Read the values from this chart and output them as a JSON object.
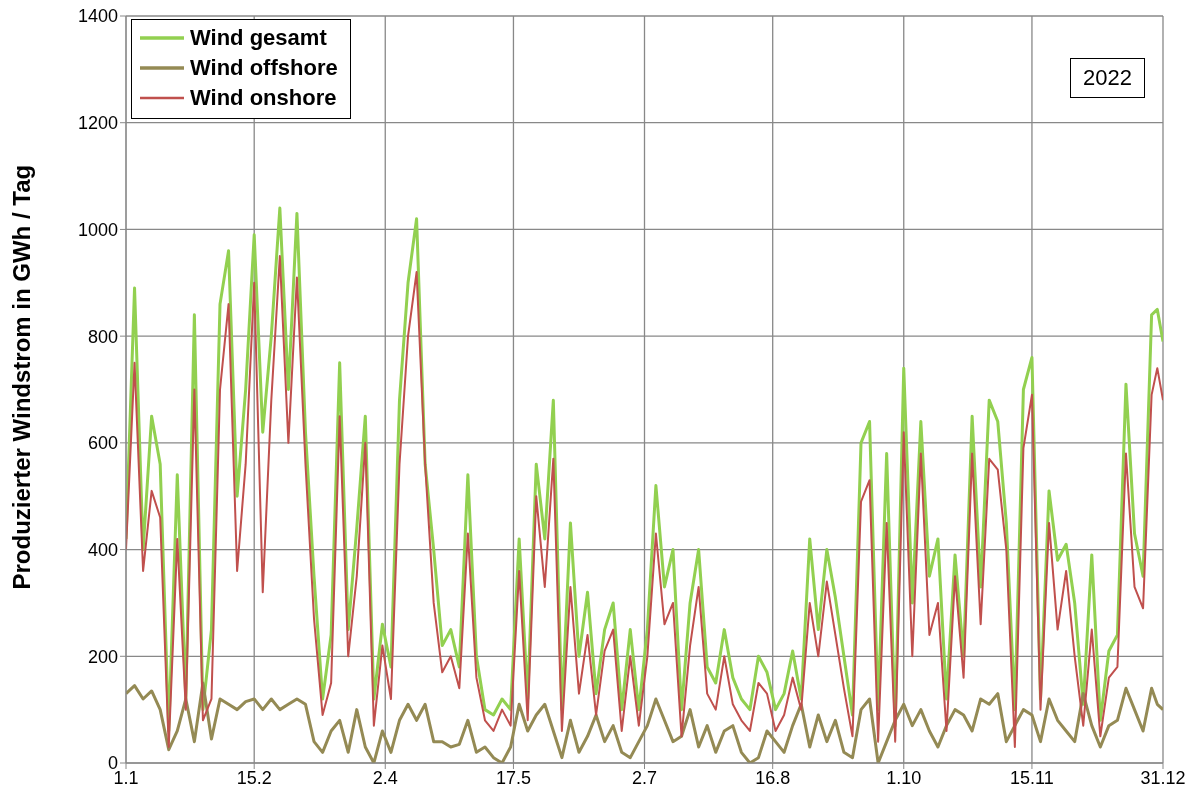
{
  "chart_data": {
    "type": "line",
    "ylabel": "Produzierter Windstrom in GWh / Tag",
    "annotations": [
      "2022"
    ],
    "x": [
      "--01-01",
      "--01-04",
      "--01-07",
      "--01-10",
      "--01-13",
      "--01-16",
      "--01-19",
      "--01-22",
      "--01-25",
      "--01-28",
      "--01-31",
      "--02-03",
      "--02-06",
      "--02-09",
      "--02-12",
      "--02-15",
      "--02-18",
      "--02-21",
      "--02-24",
      "--02-27",
      "--03-02",
      "--03-05",
      "--03-08",
      "--03-11",
      "--03-14",
      "--03-17",
      "--03-20",
      "--03-23",
      "--03-26",
      "--03-29",
      "--04-01",
      "--04-04",
      "--04-07",
      "--04-10",
      "--04-13",
      "--04-16",
      "--04-19",
      "--04-22",
      "--04-25",
      "--04-28",
      "--05-01",
      "--05-04",
      "--05-07",
      "--05-10",
      "--05-13",
      "--05-16",
      "--05-19",
      "--05-22",
      "--05-25",
      "--05-28",
      "--05-31",
      "--06-03",
      "--06-06",
      "--06-09",
      "--06-12",
      "--06-15",
      "--06-18",
      "--06-21",
      "--06-24",
      "--06-27",
      "--06-30",
      "--07-03",
      "--07-06",
      "--07-09",
      "--07-12",
      "--07-15",
      "--07-18",
      "--07-21",
      "--07-24",
      "--07-27",
      "--07-30",
      "--08-02",
      "--08-05",
      "--08-08",
      "--08-11",
      "--08-14",
      "--08-17",
      "--08-20",
      "--08-23",
      "--08-26",
      "--08-29",
      "--09-01",
      "--09-04",
      "--09-07",
      "--09-10",
      "--09-13",
      "--09-16",
      "--09-19",
      "--09-22",
      "--09-25",
      "--09-28",
      "--10-01",
      "--10-04",
      "--10-07",
      "--10-10",
      "--10-13",
      "--10-16",
      "--10-19",
      "--10-22",
      "--10-25",
      "--10-28",
      "--10-31",
      "--11-03",
      "--11-06",
      "--11-09",
      "--11-12",
      "--11-15",
      "--11-18",
      "--11-21",
      "--11-24",
      "--11-27",
      "--11-30",
      "--12-03",
      "--12-06",
      "--12-09",
      "--12-12",
      "--12-15",
      "--12-18",
      "--12-21",
      "--12-24",
      "--12-27",
      "--12-29",
      "--12-31"
    ],
    "series": [
      {
        "name": "Wind gesamt",
        "color": "#92d050",
        "values": [
          420,
          890,
          400,
          650,
          560,
          60,
          540,
          120,
          840,
          100,
          250,
          860,
          960,
          500,
          700,
          990,
          620,
          800,
          1040,
          700,
          1030,
          620,
          350,
          120,
          240,
          750,
          250,
          440,
          650,
          120,
          260,
          180,
          680,
          900,
          1020,
          560,
          400,
          220,
          250,
          180,
          540,
          200,
          100,
          90,
          120,
          100,
          420,
          120,
          560,
          420,
          680,
          100,
          450,
          200,
          320,
          130,
          250,
          300,
          100,
          250,
          100,
          250,
          520,
          330,
          400,
          100,
          300,
          400,
          180,
          150,
          250,
          160,
          120,
          100,
          200,
          170,
          100,
          130,
          210,
          120,
          420,
          250,
          400,
          310,
          200,
          90,
          600,
          640,
          100,
          580,
          70,
          740,
          300,
          640,
          350,
          420,
          120,
          390,
          200,
          650,
          330,
          680,
          640,
          450,
          100,
          700,
          760,
          120,
          510,
          380,
          410,
          300,
          110,
          390,
          80,
          210,
          240,
          710,
          430,
          350,
          840,
          850,
          790
        ]
      },
      {
        "name": "Wind offshore",
        "color": "#948a54",
        "values": [
          130,
          145,
          120,
          135,
          100,
          25,
          60,
          120,
          40,
          150,
          45,
          120,
          110,
          100,
          115,
          120,
          100,
          120,
          100,
          110,
          120,
          110,
          40,
          20,
          60,
          80,
          20,
          100,
          30,
          0,
          60,
          20,
          80,
          110,
          80,
          110,
          40,
          40,
          30,
          35,
          80,
          20,
          30,
          10,
          0,
          30,
          110,
          60,
          90,
          110,
          60,
          10,
          80,
          20,
          50,
          90,
          40,
          70,
          20,
          10,
          40,
          70,
          120,
          80,
          40,
          50,
          100,
          30,
          70,
          20,
          60,
          70,
          20,
          0,
          10,
          60,
          40,
          20,
          70,
          110,
          30,
          90,
          40,
          80,
          20,
          10,
          100,
          120,
          0,
          40,
          80,
          110,
          70,
          100,
          60,
          30,
          70,
          100,
          90,
          60,
          120,
          110,
          130,
          40,
          70,
          100,
          90,
          40,
          120,
          80,
          60,
          40,
          130,
          70,
          30,
          70,
          80,
          140,
          100,
          60,
          140,
          110,
          100
        ]
      },
      {
        "name": "Wind onshore",
        "color": "#c0504d",
        "values": [
          400,
          750,
          360,
          510,
          460,
          30,
          420,
          100,
          700,
          80,
          120,
          700,
          860,
          360,
          560,
          900,
          320,
          680,
          950,
          600,
          910,
          560,
          270,
          90,
          150,
          650,
          200,
          350,
          600,
          70,
          220,
          120,
          560,
          800,
          920,
          560,
          300,
          170,
          200,
          140,
          430,
          160,
          80,
          60,
          100,
          70,
          360,
          80,
          500,
          330,
          570,
          60,
          330,
          130,
          240,
          90,
          210,
          250,
          60,
          200,
          70,
          200,
          430,
          260,
          300,
          50,
          220,
          330,
          130,
          100,
          200,
          110,
          80,
          60,
          150,
          130,
          60,
          90,
          160,
          100,
          300,
          200,
          340,
          240,
          140,
          50,
          490,
          530,
          40,
          450,
          40,
          620,
          200,
          580,
          240,
          300,
          60,
          350,
          160,
          580,
          260,
          570,
          550,
          400,
          30,
          590,
          690,
          100,
          450,
          250,
          360,
          200,
          70,
          250,
          50,
          160,
          180,
          580,
          330,
          290,
          690,
          740,
          680
        ]
      }
    ],
    "xlim": [
      "--01-01",
      "--12-31"
    ],
    "xticks": [
      {
        "value": "--01-01",
        "label": "1.1"
      },
      {
        "value": "--02-15",
        "label": "15.2"
      },
      {
        "value": "--04-02",
        "label": "2.4"
      },
      {
        "value": "--05-17",
        "label": "17.5"
      },
      {
        "value": "--07-02",
        "label": "2.7"
      },
      {
        "value": "--08-16",
        "label": "16.8"
      },
      {
        "value": "--10-01",
        "label": "1.10"
      },
      {
        "value": "--11-15",
        "label": "15.11"
      },
      {
        "value": "--12-31",
        "label": "31.12"
      }
    ],
    "ylim": [
      0,
      1400
    ],
    "yticks": [
      0,
      200,
      400,
      600,
      800,
      1000,
      1200,
      1400
    ],
    "grid": true,
    "legend": "top left",
    "marker": "none",
    "line_style": "solid"
  }
}
